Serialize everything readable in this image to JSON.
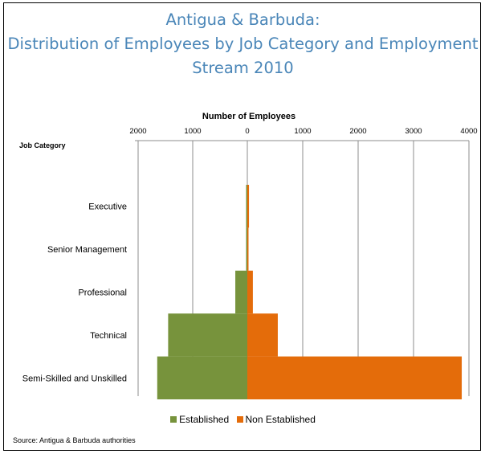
{
  "title_lines": [
    "Antigua & Barbuda:",
    "Distribution of Employees by Job Category and Employment",
    "Stream 2010"
  ],
  "source": "Source: Antigua & Barbuda authorities",
  "colors": {
    "established": "#77933c",
    "non_established": "#e46c0a",
    "title": "#4a86b8",
    "grid": "#8c8c8c"
  },
  "chart_data": {
    "type": "bar",
    "orientation": "horizontal-diverging",
    "xlabel": "Number of Employees",
    "ylabel": "Job Category",
    "left_ticks": [
      "2000",
      "1000",
      "0"
    ],
    "right_ticks": [
      "1000",
      "2000",
      "3000",
      "4000"
    ],
    "left_range": [
      0,
      2000
    ],
    "right_range": [
      0,
      4000
    ],
    "categories": [
      "Executive",
      "Senior Management",
      "Professional",
      "Technical",
      "Semi-Skilled and Unskilled"
    ],
    "series": [
      {
        "name": "Established",
        "side": "left",
        "values": [
          10,
          20,
          220,
          1450,
          1650
        ]
      },
      {
        "name": "Non Established",
        "side": "right",
        "values": [
          30,
          20,
          100,
          550,
          3870
        ]
      }
    ],
    "legend_position": "bottom",
    "grid": true
  }
}
